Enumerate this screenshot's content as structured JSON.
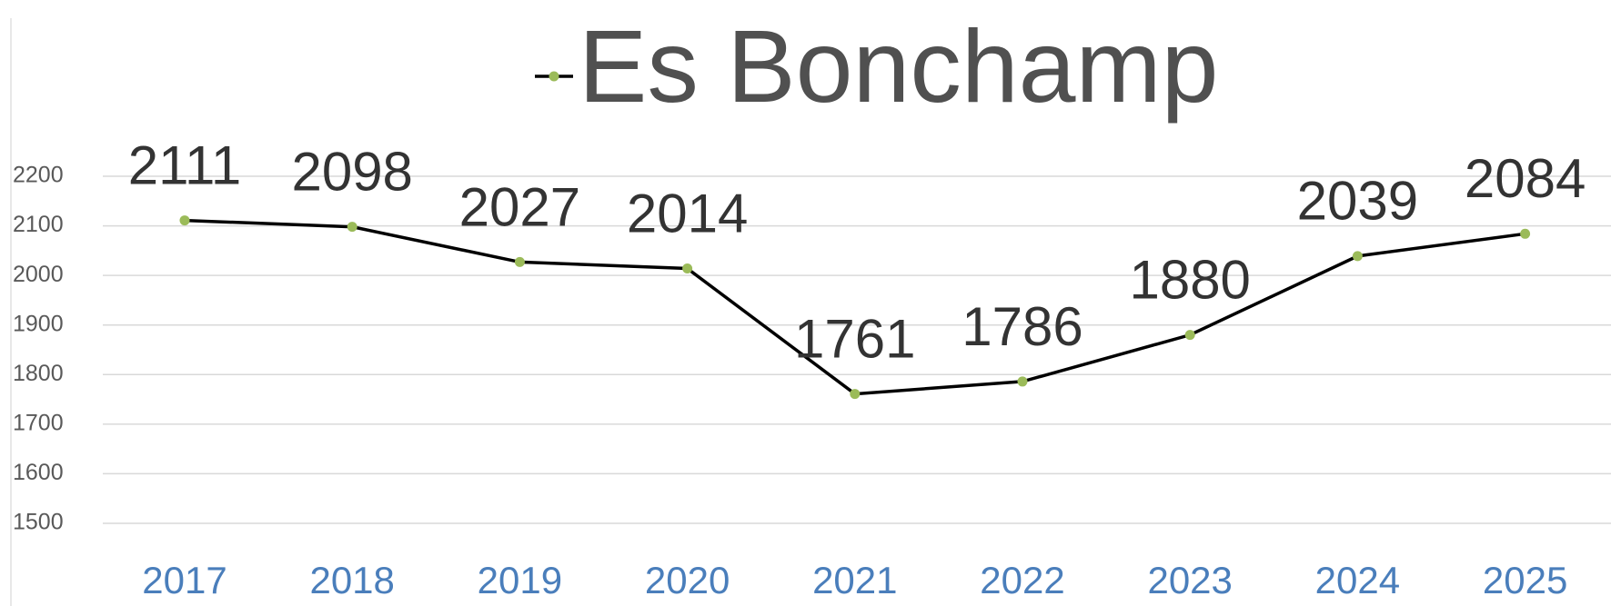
{
  "chart_data": {
    "type": "line",
    "categories": [
      "2017",
      "2018",
      "2019",
      "2020",
      "2021",
      "2022",
      "2023",
      "2024",
      "2025"
    ],
    "series": [
      {
        "name": "Es Bonchamp",
        "color": "#000000",
        "marker_color": "#9bbb59",
        "values": [
          2111,
          2098,
          2027,
          2014,
          1761,
          1786,
          1880,
          2039,
          2084
        ]
      }
    ],
    "ylim": [
      1500,
      2200
    ],
    "yticks": [
      1500,
      1600,
      1700,
      1800,
      1900,
      2000,
      2100,
      2200
    ],
    "grid": true,
    "legend": "top",
    "data_labels": true
  }
}
